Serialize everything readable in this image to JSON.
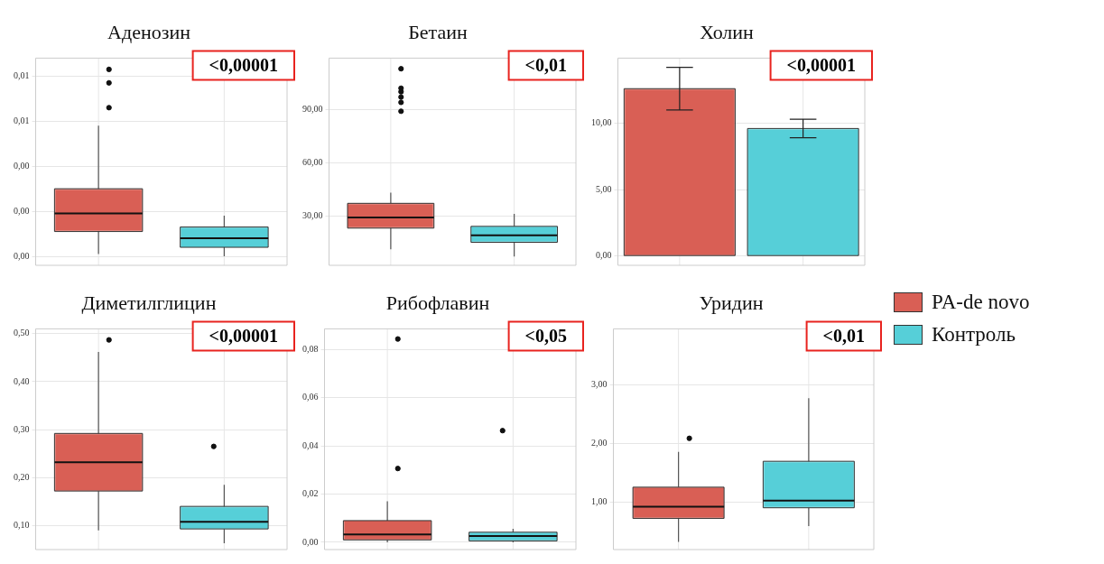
{
  "chart_data": [
    {
      "type": "box",
      "title": "Аденозин",
      "categories": [
        null
      ],
      "series": [
        {
          "color": "#d95f55",
          "boxes": [
            {
              "low": 0.0001,
              "q1": 0.0011,
              "median": 0.0019,
              "q3": 0.003,
              "high": 0.0058,
              "outliers": [
                0.0066,
                0.0077,
                0.0083
              ]
            }
          ]
        },
        {
          "color": "#56cfd8",
          "boxes": [
            {
              "low": 0,
              "q1": 0.0004,
              "median": 0.0008,
              "q3": 0.0013,
              "high": 0.0018
            }
          ]
        }
      ],
      "ylim": [
        -0.0004,
        0.0088
      ],
      "yticks": [
        {
          "value": 0,
          "label": "0,00"
        },
        {
          "value": 0.002,
          "label": "0,00"
        },
        {
          "value": 0.004,
          "label": "0,00"
        },
        {
          "value": 0.006,
          "label": "0,01"
        },
        {
          "value": 0.008,
          "label": "0,01"
        }
      ],
      "grid": true,
      "annotations": [
        "<0,00001"
      ]
    },
    {
      "type": "box",
      "title": "Бетаин",
      "categories": [
        null
      ],
      "series": [
        {
          "color": "#d95f55",
          "boxes": [
            {
              "low": 11,
              "q1": 23,
              "median": 29,
              "q3": 37,
              "high": 43,
              "outliers": [
                89,
                94,
                97,
                100,
                102,
                113
              ]
            }
          ]
        },
        {
          "color": "#56cfd8",
          "boxes": [
            {
              "low": 7,
              "q1": 15,
              "median": 19,
              "q3": 24,
              "high": 31
            }
          ]
        }
      ],
      "ylim": [
        2,
        119
      ],
      "yticks": [
        {
          "value": 30,
          "label": "30,00"
        },
        {
          "value": 60,
          "label": "60,00"
        },
        {
          "value": 90,
          "label": "90,00"
        }
      ],
      "grid": true,
      "annotations": [
        "<0,01"
      ]
    },
    {
      "type": "bar",
      "title": "Холин",
      "categories": [
        null
      ],
      "series": [
        {
          "color": "#d95f55",
          "values": [
            12.6
          ],
          "errors": [
            [
              11,
              14.2
            ]
          ]
        },
        {
          "color": "#56cfd8",
          "values": [
            9.6
          ],
          "errors": [
            [
              8.9,
              10.3
            ]
          ]
        }
      ],
      "ylim": [
        -0.7,
        14.9
      ],
      "yticks": [
        {
          "value": 0,
          "label": "0,00"
        },
        {
          "value": 5,
          "label": "5,00"
        },
        {
          "value": 10,
          "label": "10,00"
        }
      ],
      "grid": true,
      "annotations": [
        "<0,00001"
      ]
    },
    {
      "type": "box",
      "title": "Диметилглицин",
      "categories": [
        null
      ],
      "series": [
        {
          "color": "#d95f55",
          "boxes": [
            {
              "low": 0.09,
              "q1": 0.172,
              "median": 0.232,
              "q3": 0.292,
              "high": 0.462,
              "outliers": [
                0.487
              ]
            }
          ]
        },
        {
          "color": "#56cfd8",
          "boxes": [
            {
              "low": 0.063,
              "q1": 0.093,
              "median": 0.108,
              "q3": 0.14,
              "high": 0.185,
              "outliers": [
                0.265
              ]
            }
          ]
        }
      ],
      "ylim": [
        0.05,
        0.51
      ],
      "yticks": [
        {
          "value": 0.1,
          "label": "0,10"
        },
        {
          "value": 0.2,
          "label": "0,20"
        },
        {
          "value": 0.3,
          "label": "0,30"
        },
        {
          "value": 0.4,
          "label": "0,40"
        },
        {
          "value": 0.5,
          "label": "0,50"
        }
      ],
      "grid": true,
      "annotations": [
        "<0,00001"
      ]
    },
    {
      "type": "box",
      "title": "Рибофлавин",
      "categories": [
        null
      ],
      "series": [
        {
          "color": "#d95f55",
          "boxes": [
            {
              "low": 0,
              "q1": 0.001,
              "median": 0.0033,
              "q3": 0.009,
              "high": 0.017,
              "outliers": [
                0.0306,
                0.0843
              ]
            }
          ]
        },
        {
          "color": "#56cfd8",
          "boxes": [
            {
              "low": 0,
              "q1": 0.0006,
              "median": 0.0026,
              "q3": 0.0042,
              "high": 0.0056,
              "outliers": [
                0.0463
              ]
            }
          ]
        }
      ],
      "ylim": [
        -0.003,
        0.0885
      ],
      "yticks": [
        {
          "value": 0,
          "label": "0,00"
        },
        {
          "value": 0.02,
          "label": "0,02"
        },
        {
          "value": 0.04,
          "label": "0,04"
        },
        {
          "value": 0.06,
          "label": "0,06"
        },
        {
          "value": 0.08,
          "label": "0,08"
        }
      ],
      "grid": true,
      "annotations": [
        "<0,05"
      ]
    },
    {
      "type": "box",
      "title": "Уридин",
      "categories": [
        null
      ],
      "series": [
        {
          "name": "PA-de novo",
          "color": "#d95f55",
          "boxes": [
            {
              "low": 0.33,
              "q1": 0.73,
              "median": 0.93,
              "q3": 1.26,
              "high": 1.86,
              "outliers": [
                2.09
              ]
            }
          ]
        },
        {
          "name": "Контроль",
          "color": "#56cfd8",
          "boxes": [
            {
              "low": 0.6,
              "q1": 0.91,
              "median": 1.03,
              "q3": 1.7,
              "high": 2.77
            }
          ]
        }
      ],
      "ylim": [
        0.2,
        3.95
      ],
      "yticks": [
        {
          "value": 1,
          "label": "1,00"
        },
        {
          "value": 2,
          "label": "2,00"
        },
        {
          "value": 3,
          "label": "3,00"
        }
      ],
      "grid": true,
      "legend": "right",
      "annotations": [
        "<0,01"
      ]
    }
  ]
}
